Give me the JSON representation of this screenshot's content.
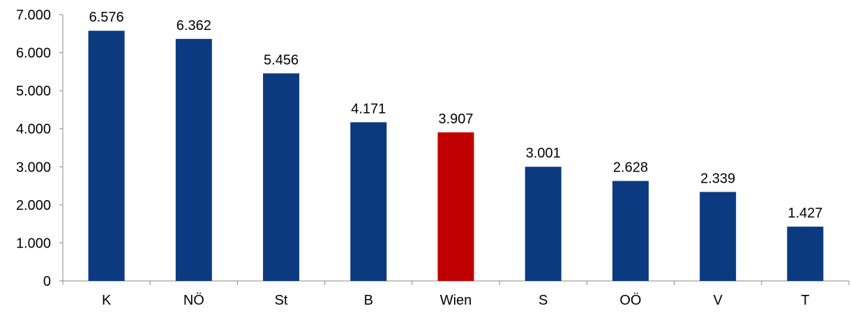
{
  "chart_data": {
    "type": "bar",
    "title": "",
    "xlabel": "",
    "ylabel": "",
    "categories": [
      "K",
      "NÖ",
      "St",
      "B",
      "Wien",
      "S",
      "OÖ",
      "V",
      "T"
    ],
    "values": [
      6576,
      6362,
      5456,
      4171,
      3907,
      3001,
      2628,
      2339,
      1427
    ],
    "value_labels": [
      "6.576",
      "6.362",
      "5.456",
      "4.171",
      "3.907",
      "3.001",
      "2.628",
      "2.339",
      "1.427"
    ],
    "highlight_category": "Wien",
    "ylim": [
      0,
      7000
    ],
    "yticks": [
      0,
      1000,
      2000,
      3000,
      4000,
      5000,
      6000,
      7000
    ],
    "ytick_labels": [
      "0",
      "1.000",
      "2.000",
      "3.000",
      "4.000",
      "5.000",
      "6.000",
      "7.000"
    ],
    "grid": false,
    "legend": "none",
    "colors": {
      "bar": "#0b3a80",
      "highlight": "#c00000",
      "axis": "#888888"
    }
  }
}
